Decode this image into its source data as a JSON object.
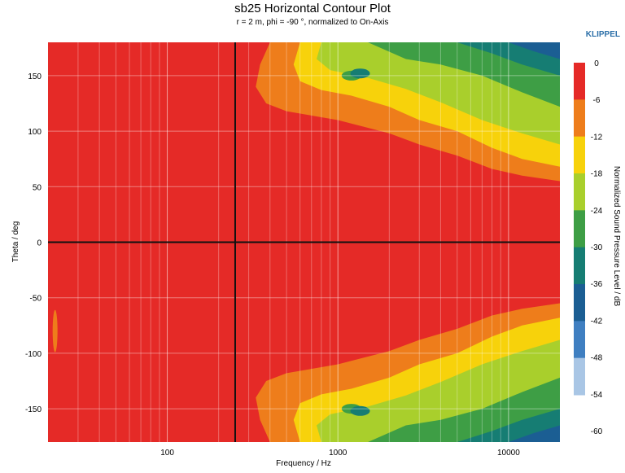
{
  "brand": "KLIPPEL",
  "chart_data": {
    "type": "heatmap",
    "title": "sb25 Horizontal Contour Plot",
    "subtitle": "r = 2 m, phi = -90 °, normalized to On-Axis",
    "xlabel": "Frequency / Hz",
    "ylabel": "Theta / deg",
    "colorbar_label": "Normalized Sound Pressure Level / dB",
    "x_scale": "log",
    "xlim": [
      20,
      20000
    ],
    "ylim": [
      -180,
      180
    ],
    "x_ticks": [
      100,
      1000,
      10000
    ],
    "x_tick_labels": [
      "100",
      "1000",
      "10000"
    ],
    "y_ticks": [
      150,
      100,
      50,
      0,
      -50,
      -100,
      -150
    ],
    "y_tick_labels": [
      "150",
      "100",
      "50",
      "0",
      "-50",
      "-100",
      "-150"
    ],
    "levels": [
      0,
      -6,
      -12,
      -18,
      -24,
      -30,
      -36,
      -42,
      -48,
      -54,
      -60
    ],
    "level_labels": [
      "0",
      "-6",
      "-12",
      "-18",
      "-24",
      "-30",
      "-36",
      "-42",
      "-48",
      "-54",
      "-60"
    ],
    "level_colors": [
      "#e52a27",
      "#ee7d1b",
      "#f7d20b",
      "#a9cf2c",
      "#3e9e45",
      "#167d73",
      "#1b5e93",
      "#3f7fc1",
      "#a9c6e5"
    ],
    "reference_lines": {
      "x": 250,
      "y": 0
    },
    "grid": true,
    "contour_boundaries": [
      {
        "level": -6,
        "upper": [
          [
            400,
            180
          ],
          [
            350,
            160
          ],
          [
            330,
            140
          ],
          [
            380,
            125
          ],
          [
            500,
            118
          ],
          [
            1000,
            110
          ],
          [
            2000,
            98
          ],
          [
            3000,
            88
          ],
          [
            5000,
            78
          ],
          [
            8000,
            66
          ],
          [
            12000,
            60
          ],
          [
            20000,
            55
          ]
        ],
        "lower": [
          [
            400,
            -180
          ],
          [
            350,
            -160
          ],
          [
            330,
            -140
          ],
          [
            380,
            -125
          ],
          [
            500,
            -118
          ],
          [
            1000,
            -110
          ],
          [
            2000,
            -98
          ],
          [
            3000,
            -88
          ],
          [
            5000,
            -78
          ],
          [
            8000,
            -66
          ],
          [
            12000,
            -60
          ],
          [
            20000,
            -55
          ]
        ]
      },
      {
        "level": -12,
        "upper": [
          [
            600,
            180
          ],
          [
            550,
            160
          ],
          [
            600,
            145
          ],
          [
            800,
            137
          ],
          [
            1200,
            132
          ],
          [
            2000,
            122
          ],
          [
            3000,
            110
          ],
          [
            5000,
            100
          ],
          [
            8000,
            85
          ],
          [
            12000,
            75
          ],
          [
            20000,
            68
          ]
        ],
        "lower": [
          [
            600,
            -180
          ],
          [
            550,
            -160
          ],
          [
            600,
            -145
          ],
          [
            800,
            -137
          ],
          [
            1200,
            -132
          ],
          [
            2000,
            -122
          ],
          [
            3000,
            -110
          ],
          [
            5000,
            -100
          ],
          [
            8000,
            -85
          ],
          [
            12000,
            -75
          ],
          [
            20000,
            -68
          ]
        ]
      },
      {
        "level": -18,
        "upper": [
          [
            800,
            180
          ],
          [
            750,
            165
          ],
          [
            900,
            155
          ],
          [
            1500,
            148
          ],
          [
            2500,
            138
          ],
          [
            4000,
            126
          ],
          [
            7000,
            110
          ],
          [
            12000,
            98
          ],
          [
            20000,
            88
          ]
        ],
        "lower": [
          [
            800,
            -180
          ],
          [
            750,
            -165
          ],
          [
            900,
            -155
          ],
          [
            1500,
            -148
          ],
          [
            2500,
            -138
          ],
          [
            4000,
            -126
          ],
          [
            7000,
            -110
          ],
          [
            12000,
            -98
          ],
          [
            20000,
            -88
          ]
        ]
      },
      {
        "level": -24,
        "upper": [
          [
            1500,
            180
          ],
          [
            2500,
            165
          ],
          [
            4000,
            160
          ],
          [
            7000,
            150
          ],
          [
            12000,
            135
          ],
          [
            20000,
            122
          ]
        ],
        "lower": [
          [
            1500,
            -180
          ],
          [
            2500,
            -165
          ],
          [
            4000,
            -160
          ],
          [
            7000,
            -150
          ],
          [
            12000,
            -135
          ],
          [
            20000,
            -122
          ]
        ]
      },
      {
        "level": -30,
        "upper": [
          [
            5000,
            180
          ],
          [
            8000,
            170
          ],
          [
            12000,
            160
          ],
          [
            20000,
            150
          ]
        ],
        "lower": [
          [
            5000,
            -180
          ],
          [
            8000,
            -170
          ],
          [
            12000,
            -160
          ],
          [
            20000,
            -150
          ]
        ]
      },
      {
        "level": -36,
        "upper": [
          [
            10000,
            180
          ],
          [
            14000,
            172
          ],
          [
            20000,
            165
          ]
        ],
        "lower": [
          [
            10000,
            -180
          ],
          [
            14000,
            -172
          ],
          [
            20000,
            -165
          ]
        ]
      }
    ],
    "islands": [
      {
        "level": -24,
        "x": 1200,
        "y": 150
      },
      {
        "level": -30,
        "x": 1350,
        "y": 152
      },
      {
        "level": -24,
        "x": 1200,
        "y": -150
      },
      {
        "level": -30,
        "x": 1350,
        "y": -152
      },
      {
        "level": -6,
        "x": 22,
        "y": -80
      }
    ]
  }
}
